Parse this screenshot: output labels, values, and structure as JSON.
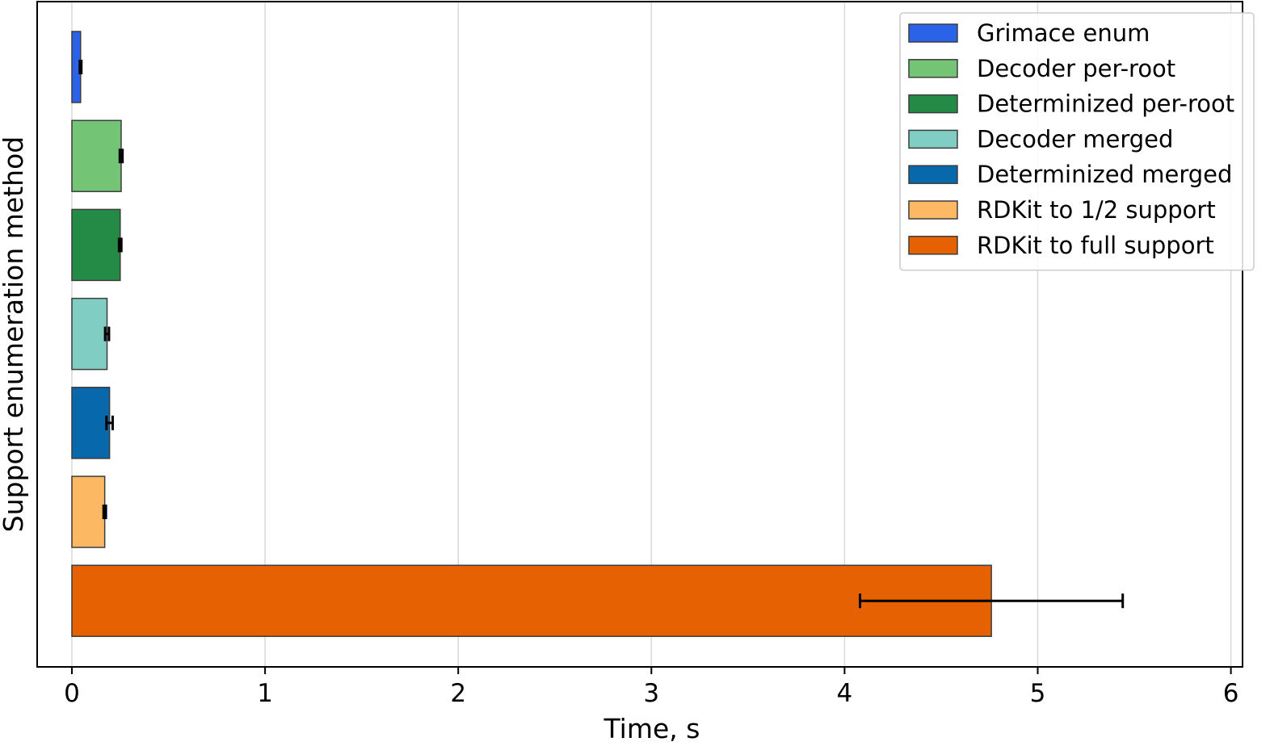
{
  "chart_data": {
    "type": "bar",
    "orientation": "horizontal",
    "title": "",
    "xlabel": "Time, s",
    "ylabel": "Support enumeration method",
    "xlim": [
      -0.18,
      6.06
    ],
    "xticks": [
      0,
      1,
      2,
      3,
      4,
      5,
      6
    ],
    "xtick_labels": [
      "0",
      "1",
      "2",
      "3",
      "4",
      "5",
      "6"
    ],
    "grid": "vertical gridlines",
    "legend_position": "top-right",
    "series": [
      {
        "name": "Grimace enum",
        "value": 0.045,
        "error": 0.004,
        "color": "#2b63e8"
      },
      {
        "name": "Decoder per-root",
        "value": 0.255,
        "error": 0.007,
        "color": "#74c476"
      },
      {
        "name": "Determinized per-root",
        "value": 0.25,
        "error": 0.006,
        "color": "#238b45"
      },
      {
        "name": "Decoder merged",
        "value": 0.182,
        "error": 0.01,
        "color": "#7fcdc3"
      },
      {
        "name": "Determinized merged",
        "value": 0.195,
        "error": 0.016,
        "color": "#0868ac"
      },
      {
        "name": "RDKit to 1/2 support",
        "value": 0.17,
        "error": 0.006,
        "color": "#fdb863"
      },
      {
        "name": "RDKit to full support",
        "value": 4.76,
        "error": 0.68,
        "color": "#e66101"
      }
    ]
  }
}
